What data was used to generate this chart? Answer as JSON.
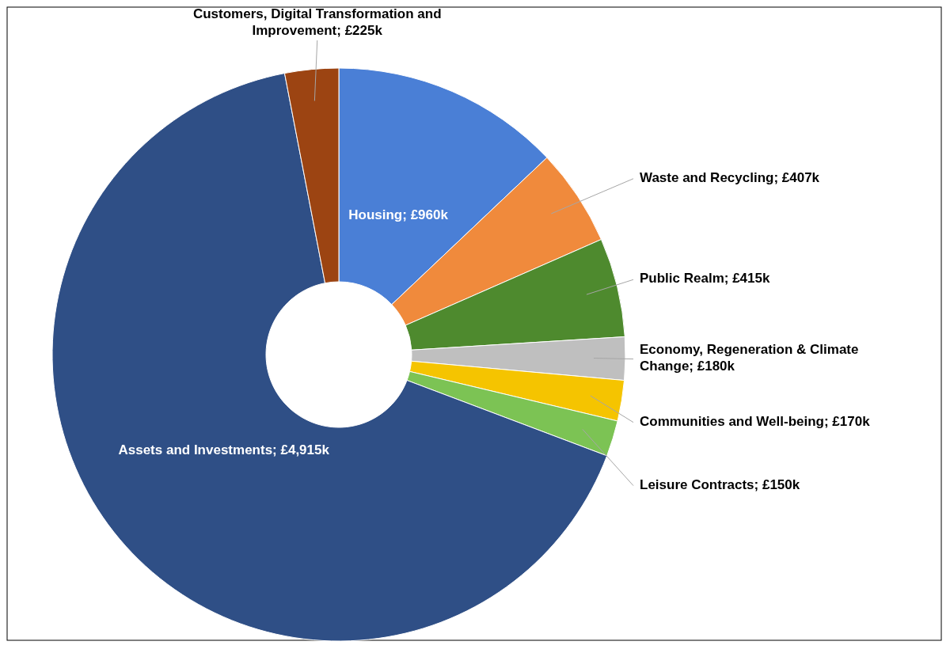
{
  "chart_data": {
    "type": "donut",
    "categories": [
      "Housing",
      "Waste and Recycling",
      "Public Realm",
      "Economy, Regeneration & Climate Change",
      "Communities and Well-being",
      "Leisure Contracts",
      "Assets and Investments",
      "Customers, Digital Transformation and Improvement"
    ],
    "values": [
      960,
      407,
      415,
      180,
      170,
      150,
      4915,
      225
    ],
    "value_labels": [
      "£960k",
      "£407k",
      "£415k",
      "£180k",
      "£170k",
      "£150k",
      "£4,915k",
      "£225k"
    ],
    "colors": [
      "#4a7fd6",
      "#f08a3c",
      "#4e8a2e",
      "#bfbfbf",
      "#f5c400",
      "#7cc354",
      "#2f4f86",
      "#9c4412"
    ]
  }
}
